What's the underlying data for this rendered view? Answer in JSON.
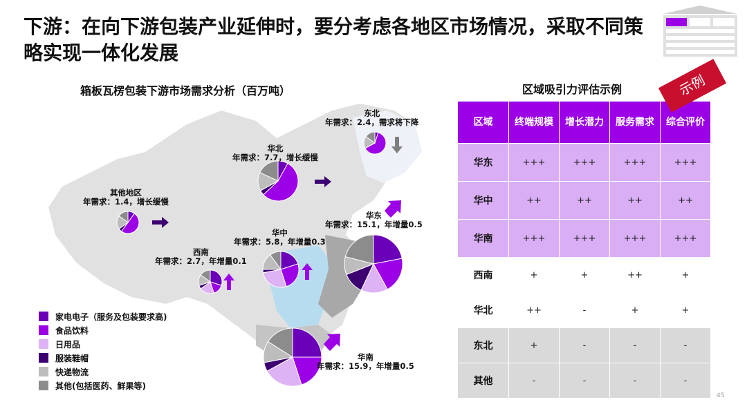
{
  "title": "下游：在向下游包装产业延伸时，要分考虑各地区市场情况，采取不同策略实现一体化发展",
  "left_subtitle": "箱板瓦楞包装下游市场需求分析（百万吨）",
  "right_subtitle": "区域吸引力评估示例",
  "stamp": "示例",
  "page_number": "45",
  "colors": {
    "appliance": "#6a00b8",
    "food": "#9b00e6",
    "daily": "#ddb3f5",
    "apparel": "#3c0070",
    "express": "#bdbdbd",
    "other": "#8c8c8c",
    "header": "#9b00e6",
    "row_high": "#d9aef5",
    "row_white": "#ffffff",
    "row_grey": "#d9d9d9"
  },
  "legend": [
    {
      "label": "家电电子（服务及包装要求高)",
      "color": "#6a00b8"
    },
    {
      "label": "食品饮料",
      "color": "#9b00e6"
    },
    {
      "label": "日用品",
      "color": "#ddb3f5"
    },
    {
      "label": "服装鞋帽",
      "color": "#3c0070"
    },
    {
      "label": "快递物流",
      "color": "#bdbdbd"
    },
    {
      "label": "其他(包括医药、鲜果等)",
      "color": "#8c8c8c"
    }
  ],
  "regions": [
    {
      "name": "东北",
      "desc": "年需求：2.4，需求将下降",
      "demand": 2.4,
      "trend": "down",
      "shares": [
        5,
        62,
        0,
        0,
        18,
        15
      ]
    },
    {
      "name": "华北",
      "desc": "年需求：7.7，增长缓慢",
      "demand": 7.7,
      "trend": "flat",
      "shares": [
        8,
        55,
        0,
        4,
        15,
        18
      ]
    },
    {
      "name": "其他地区",
      "desc": "年需求：1.4，增长缓慢",
      "demand": 1.4,
      "trend": "flat",
      "shares": [
        10,
        50,
        0,
        5,
        20,
        15
      ]
    },
    {
      "name": "华东",
      "desc": "年需求：15.1，年增量0.5",
      "demand": 15.1,
      "trend": "up",
      "shares": [
        22,
        20,
        15,
        12,
        10,
        21
      ]
    },
    {
      "name": "华中",
      "desc": "年需求：5.8，年增量0.3",
      "demand": 5.8,
      "trend": "up",
      "shares": [
        20,
        25,
        27,
        3,
        15,
        10
      ]
    },
    {
      "name": "西南",
      "desc": "年需求：2.7，年增量0.1",
      "demand": 2.7,
      "trend": "up",
      "shares": [
        30,
        15,
        20,
        5,
        15,
        15
      ]
    },
    {
      "name": "华南",
      "desc": "年需求：15.9，年增量0.5",
      "demand": 15.9,
      "trend": "up",
      "shares": [
        25,
        20,
        22,
        5,
        12,
        16
      ]
    }
  ],
  "table": {
    "headers": [
      "区域",
      "终端规模",
      "增长潜力",
      "服务需求",
      "综合评价"
    ],
    "rows": [
      {
        "cells": [
          "华东",
          "+++",
          "+++",
          "+++",
          "+++"
        ],
        "tier": "high"
      },
      {
        "cells": [
          "华中",
          "++",
          "++",
          "++",
          "++"
        ],
        "tier": "high"
      },
      {
        "cells": [
          "华南",
          "+++",
          "+++",
          "+++",
          "+++"
        ],
        "tier": "high"
      },
      {
        "cells": [
          "西南",
          "+",
          "+",
          "++",
          "+"
        ],
        "tier": "white"
      },
      {
        "cells": [
          "华北",
          "++",
          "-",
          "+",
          "+"
        ],
        "tier": "white"
      },
      {
        "cells": [
          "东北",
          "+",
          "-",
          "-",
          "-"
        ],
        "tier": "grey"
      },
      {
        "cells": [
          "其他",
          "-",
          "-",
          "-",
          "-"
        ],
        "tier": "grey"
      }
    ]
  }
}
